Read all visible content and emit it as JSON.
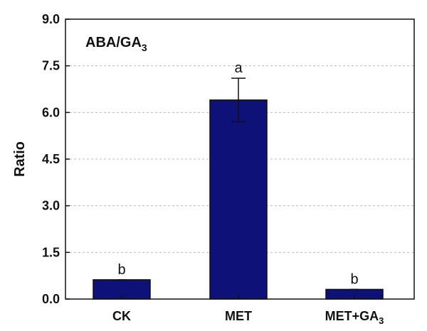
{
  "chart_data": {
    "type": "bar",
    "title": "ABA/GA",
    "title_subscript": "3",
    "xlabel": "",
    "ylabel": "Ratio",
    "ylim": [
      0,
      9.0
    ],
    "yticks": [
      "0.0",
      "1.5",
      "3.0",
      "4.5",
      "6.0",
      "7.5",
      "9.0"
    ],
    "grid": true,
    "bar_color": "#0d1178",
    "categories": [
      {
        "label": "CK",
        "sub": ""
      },
      {
        "label": "MET",
        "sub": ""
      },
      {
        "label": "MET+GA",
        "sub": "3"
      }
    ],
    "values": [
      0.62,
      6.4,
      0.31
    ],
    "errors": [
      0.0,
      0.7,
      0.0
    ],
    "significance": [
      "b",
      "a",
      "b"
    ]
  }
}
